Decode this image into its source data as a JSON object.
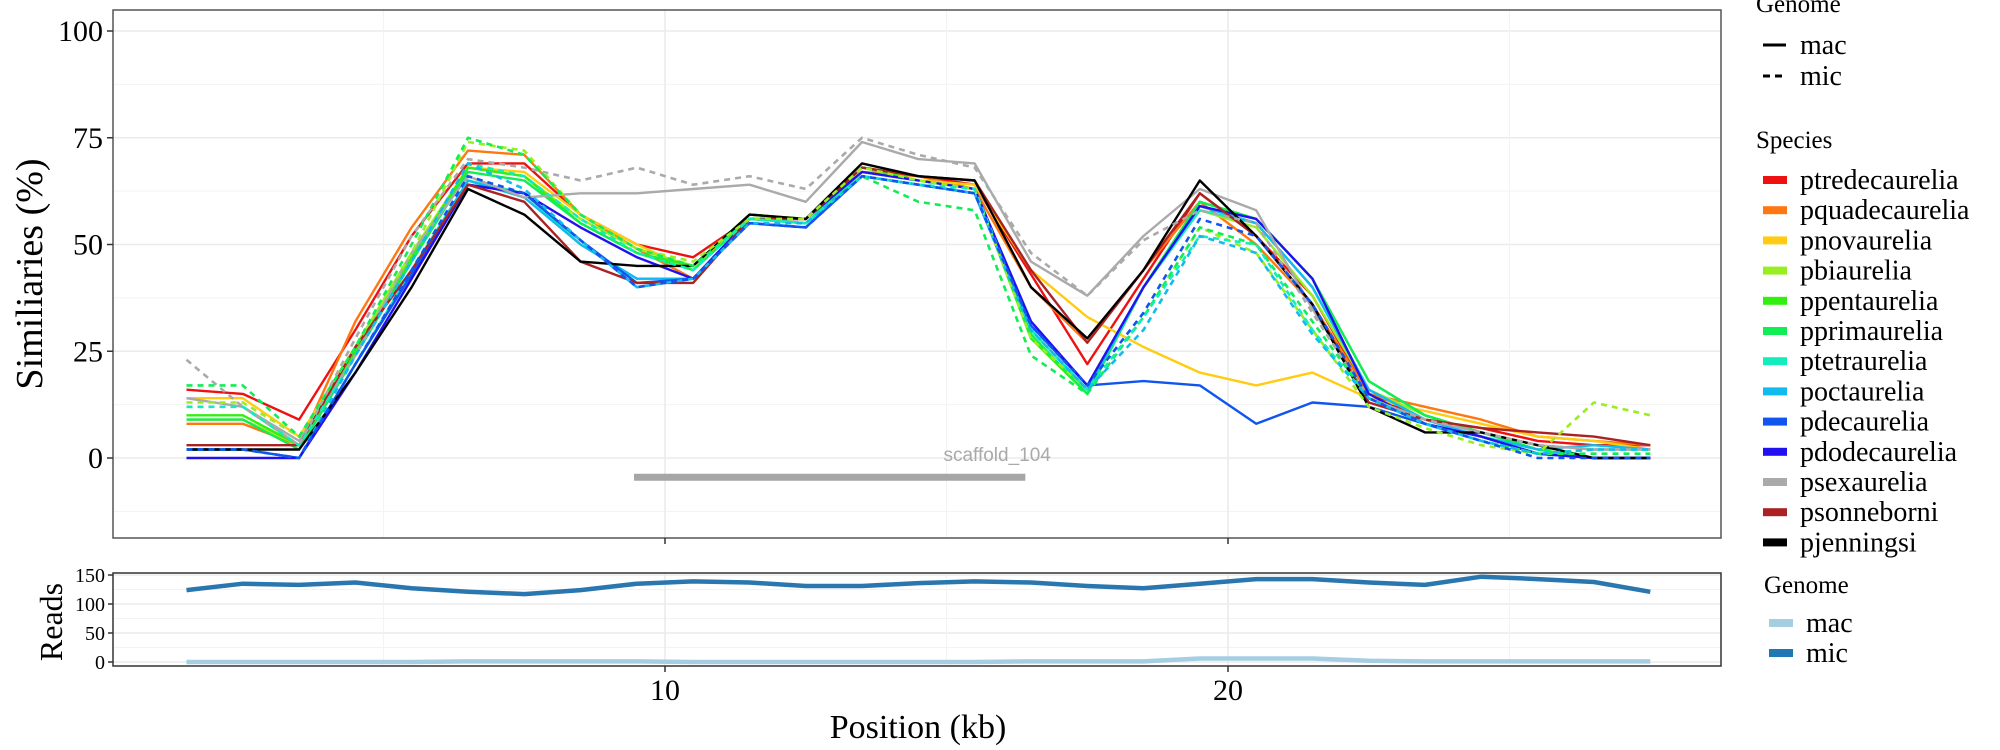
{
  "chart_data": [
    {
      "type": "line",
      "panel": "top",
      "title": "",
      "xlabel": "Position (kb)",
      "ylabel": "Similiaries (%)",
      "ylim": [
        -8,
        105
      ],
      "xlim": [
        0,
        30
      ],
      "yticks": [
        0,
        25,
        50,
        75,
        100
      ],
      "xticks": [
        10,
        20
      ],
      "grid": true,
      "x": [
        1.5,
        2.5,
        3.5,
        4.5,
        5.5,
        6.5,
        7.5,
        8.5,
        9.5,
        10.5,
        11.5,
        12.5,
        13.5,
        14.5,
        15.5,
        16.5,
        17.5,
        18.5,
        19.5,
        20.5,
        21.5,
        22.5,
        23.5,
        24.5,
        25.5,
        26.5,
        27.5
      ],
      "legend_genome": {
        "title": "Genome",
        "entries": [
          {
            "label": "mac",
            "linetype": "solid"
          },
          {
            "label": "mic",
            "linetype": "dashed"
          }
        ]
      },
      "legend_species": {
        "title": "Species",
        "entries": [
          {
            "label": "ptredecaurelia",
            "color": "#ee1111"
          },
          {
            "label": "pquadecaurelia",
            "color": "#ff7711"
          },
          {
            "label": "pnovaurelia",
            "color": "#ffcc11"
          },
          {
            "label": "pbiaurelia",
            "color": "#99ee22"
          },
          {
            "label": "ppentaurelia",
            "color": "#33ee11"
          },
          {
            "label": "pprimaurelia",
            "color": "#11ee55"
          },
          {
            "label": "ptetraurelia",
            "color": "#11eebb"
          },
          {
            "label": "poctaurelia",
            "color": "#11bbee"
          },
          {
            "label": "pdecaurelia",
            "color": "#1155ee"
          },
          {
            "label": "pdodecaurelia",
            "color": "#2211ee"
          },
          {
            "label": "psexaurelia",
            "color": "#aaaaaa"
          },
          {
            "label": "psonneborni",
            "color": "#aa2222"
          },
          {
            "label": "pjenningsi",
            "color": "#000000"
          }
        ]
      },
      "series": [
        {
          "name": "ptredecaurelia",
          "genome": "mac",
          "color": "#ee1111",
          "values": [
            16,
            15,
            9,
            30,
            52,
            69,
            69,
            57,
            50,
            47,
            56,
            56,
            68,
            66,
            64,
            43,
            22,
            42,
            62,
            52,
            38,
            15,
            9,
            7,
            4,
            3,
            3
          ]
        },
        {
          "name": "pquadecaurelia",
          "genome": "mac",
          "color": "#ff7711",
          "values": [
            8,
            8,
            3,
            32,
            54,
            72,
            71,
            57,
            49,
            42,
            56,
            56,
            67,
            66,
            63,
            40,
            27,
            44,
            60,
            50,
            36,
            15,
            12,
            9,
            5,
            4,
            3
          ]
        },
        {
          "name": "pnovaurelia",
          "genome": "mac",
          "color": "#ffcc11",
          "values": [
            14,
            14,
            5,
            26,
            48,
            68,
            67,
            57,
            50,
            44,
            57,
            56,
            68,
            65,
            64,
            44,
            33,
            26,
            20,
            17,
            20,
            14,
            11,
            8,
            5,
            4,
            2
          ]
        },
        {
          "name": "pbiaurelia",
          "genome": "mac",
          "color": "#99ee22",
          "values": [
            9,
            9,
            3,
            26,
            48,
            68,
            66,
            56,
            49,
            45,
            57,
            56,
            68,
            65,
            63,
            28,
            16,
            40,
            58,
            54,
            38,
            16,
            10,
            6,
            2,
            0,
            0
          ]
        },
        {
          "name": "ppentaurelia",
          "genome": "mac",
          "color": "#33ee11",
          "values": [
            10,
            10,
            3,
            25,
            47,
            68,
            66,
            55,
            48,
            45,
            57,
            56,
            68,
            65,
            63,
            28,
            15,
            40,
            60,
            56,
            42,
            18,
            10,
            6,
            2,
            0,
            0
          ]
        },
        {
          "name": "pprimaurelia",
          "genome": "mac",
          "color": "#11ee55",
          "values": [
            9,
            9,
            2,
            24,
            46,
            67,
            65,
            55,
            48,
            44,
            56,
            55,
            67,
            65,
            63,
            29,
            15,
            40,
            60,
            56,
            42,
            18,
            10,
            6,
            2,
            0,
            0
          ]
        },
        {
          "name": "ptetraurelia",
          "genome": "mac",
          "color": "#11eebb",
          "values": [
            2,
            2,
            0,
            22,
            44,
            65,
            62,
            50,
            42,
            42,
            56,
            55,
            66,
            64,
            62,
            30,
            16,
            40,
            58,
            55,
            40,
            16,
            9,
            5,
            1,
            0,
            0
          ]
        },
        {
          "name": "poctaurelia",
          "genome": "mac",
          "color": "#11bbee",
          "values": [
            2,
            2,
            0,
            22,
            43,
            65,
            61,
            50,
            42,
            42,
            55,
            54,
            66,
            64,
            62,
            30,
            16,
            40,
            59,
            55,
            40,
            16,
            9,
            5,
            2,
            3,
            2
          ]
        },
        {
          "name": "pdecaurelia",
          "genome": "mac",
          "color": "#1155ee",
          "values": [
            2,
            2,
            0,
            22,
            43,
            64,
            62,
            51,
            41,
            42,
            55,
            54,
            66,
            64,
            62,
            31,
            17,
            18,
            17,
            8,
            13,
            12,
            8,
            5,
            1,
            0,
            0
          ]
        },
        {
          "name": "pdodecaurelia",
          "genome": "mac",
          "color": "#2211ee",
          "values": [
            0,
            0,
            0,
            20,
            42,
            64,
            62,
            54,
            47,
            42,
            56,
            56,
            67,
            65,
            63,
            32,
            17,
            40,
            59,
            56,
            42,
            15,
            8,
            5,
            1,
            0,
            0
          ]
        },
        {
          "name": "psexaurelia",
          "genome": "mac",
          "color": "#aaaaaa",
          "values": [
            14,
            12,
            4,
            24,
            48,
            66,
            61,
            62,
            62,
            63,
            64,
            60,
            74,
            70,
            69,
            46,
            38,
            52,
            63,
            58,
            35,
            14,
            9,
            6,
            3,
            2,
            2
          ]
        },
        {
          "name": "psonneborni",
          "genome": "mac",
          "color": "#aa2222",
          "values": [
            3,
            3,
            3,
            26,
            44,
            64,
            60,
            46,
            41,
            41,
            56,
            56,
            68,
            66,
            65,
            44,
            27,
            44,
            62,
            52,
            36,
            13,
            9,
            7,
            6,
            5,
            3
          ]
        },
        {
          "name": "pjenningsi",
          "genome": "mac",
          "color": "#000000",
          "values": [
            2,
            2,
            2,
            20,
            40,
            63,
            57,
            46,
            45,
            45,
            57,
            56,
            69,
            66,
            65,
            40,
            28,
            44,
            65,
            52,
            36,
            12,
            6,
            6,
            3,
            0,
            0
          ]
        },
        {
          "name": "psexaurelia",
          "genome": "mic",
          "color": "#aaaaaa",
          "values": [
            23,
            12,
            3,
            28,
            52,
            70,
            68,
            65,
            68,
            64,
            66,
            63,
            75,
            71,
            68,
            48,
            38,
            51,
            58,
            55,
            34,
            14,
            9,
            6,
            3,
            2,
            2
          ]
        },
        {
          "name": "pbiaurelia",
          "genome": "mic",
          "color": "#99ee22",
          "values": [
            13,
            13,
            5,
            26,
            48,
            74,
            72,
            57,
            49,
            46,
            56,
            56,
            68,
            65,
            63,
            28,
            16,
            33,
            54,
            48,
            30,
            12,
            7,
            3,
            1,
            13,
            10
          ]
        },
        {
          "name": "pprimaurelia",
          "genome": "mic",
          "color": "#11ee55",
          "values": [
            17,
            17,
            5,
            26,
            50,
            75,
            71,
            57,
            49,
            45,
            56,
            55,
            66,
            60,
            58,
            24,
            15,
            33,
            54,
            50,
            32,
            14,
            8,
            4,
            1,
            1,
            1
          ]
        },
        {
          "name": "ptetraurelia",
          "genome": "mic",
          "color": "#11eebb",
          "values": [
            12,
            12,
            3,
            24,
            46,
            69,
            66,
            56,
            48,
            44,
            56,
            55,
            66,
            64,
            63,
            30,
            16,
            33,
            52,
            50,
            30,
            14,
            8,
            4,
            1,
            2,
            2
          ]
        },
        {
          "name": "poctaurelia",
          "genome": "mic",
          "color": "#11bbee",
          "values": [
            2,
            2,
            0,
            24,
            46,
            69,
            63,
            51,
            40,
            42,
            55,
            55,
            66,
            64,
            62,
            30,
            16,
            30,
            52,
            48,
            29,
            14,
            8,
            4,
            1,
            2,
            2
          ]
        },
        {
          "name": "pdecaurelia",
          "genome": "mic",
          "color": "#1155ee",
          "values": [
            2,
            2,
            0,
            22,
            44,
            66,
            62,
            51,
            40,
            42,
            55,
            54,
            66,
            64,
            62,
            31,
            17,
            34,
            56,
            52,
            36,
            14,
            8,
            4,
            0,
            0,
            0
          ]
        }
      ],
      "annotations": [
        {
          "type": "segment",
          "label": "scaffold_104",
          "x_start": 9.45,
          "x_end": 16.4,
          "y": -4.5,
          "color": "#a6a6a6"
        }
      ]
    },
    {
      "type": "line",
      "panel": "bottom",
      "ylabel": "Reads",
      "xlabel": "Position (kb)",
      "ylim": [
        -5,
        150
      ],
      "yticks": [
        0,
        50,
        100,
        150
      ],
      "xticks": [
        10,
        20
      ],
      "grid": true,
      "x": [
        1.5,
        2.5,
        3.5,
        4.5,
        5.5,
        6.5,
        7.5,
        8.5,
        9.5,
        10.5,
        11.5,
        12.5,
        13.5,
        14.5,
        15.5,
        16.5,
        17.5,
        18.5,
        19.5,
        20.5,
        21.5,
        22.5,
        23.5,
        24.5,
        25.5,
        26.5,
        27.5
      ],
      "legend": {
        "title": "Genome",
        "entries": [
          {
            "label": "mac",
            "color": "#a6cee3"
          },
          {
            "label": "mic",
            "color": "#1f78b4"
          }
        ]
      },
      "series": [
        {
          "name": "mac",
          "color": "#a6cee3",
          "values": [
            0,
            0,
            0,
            0,
            0,
            1,
            1,
            1,
            1,
            0,
            0,
            0,
            0,
            0,
            0,
            1,
            1,
            1,
            6,
            6,
            6,
            2,
            1,
            1,
            1,
            1,
            1
          ]
        },
        {
          "name": "mic",
          "color": "#2a77b0",
          "values": [
            124,
            135,
            133,
            137,
            127,
            121,
            117,
            124,
            135,
            139,
            137,
            131,
            131,
            136,
            139,
            137,
            131,
            127,
            135,
            143,
            143,
            137,
            133,
            147,
            143,
            138,
            121
          ]
        }
      ]
    }
  ],
  "labels": {
    "top_ylabel": "Similiaries (%)",
    "bottom_ylabel": "Reads",
    "xlabel": "Position (kb)",
    "scaffold_label": "scaffold_104"
  }
}
